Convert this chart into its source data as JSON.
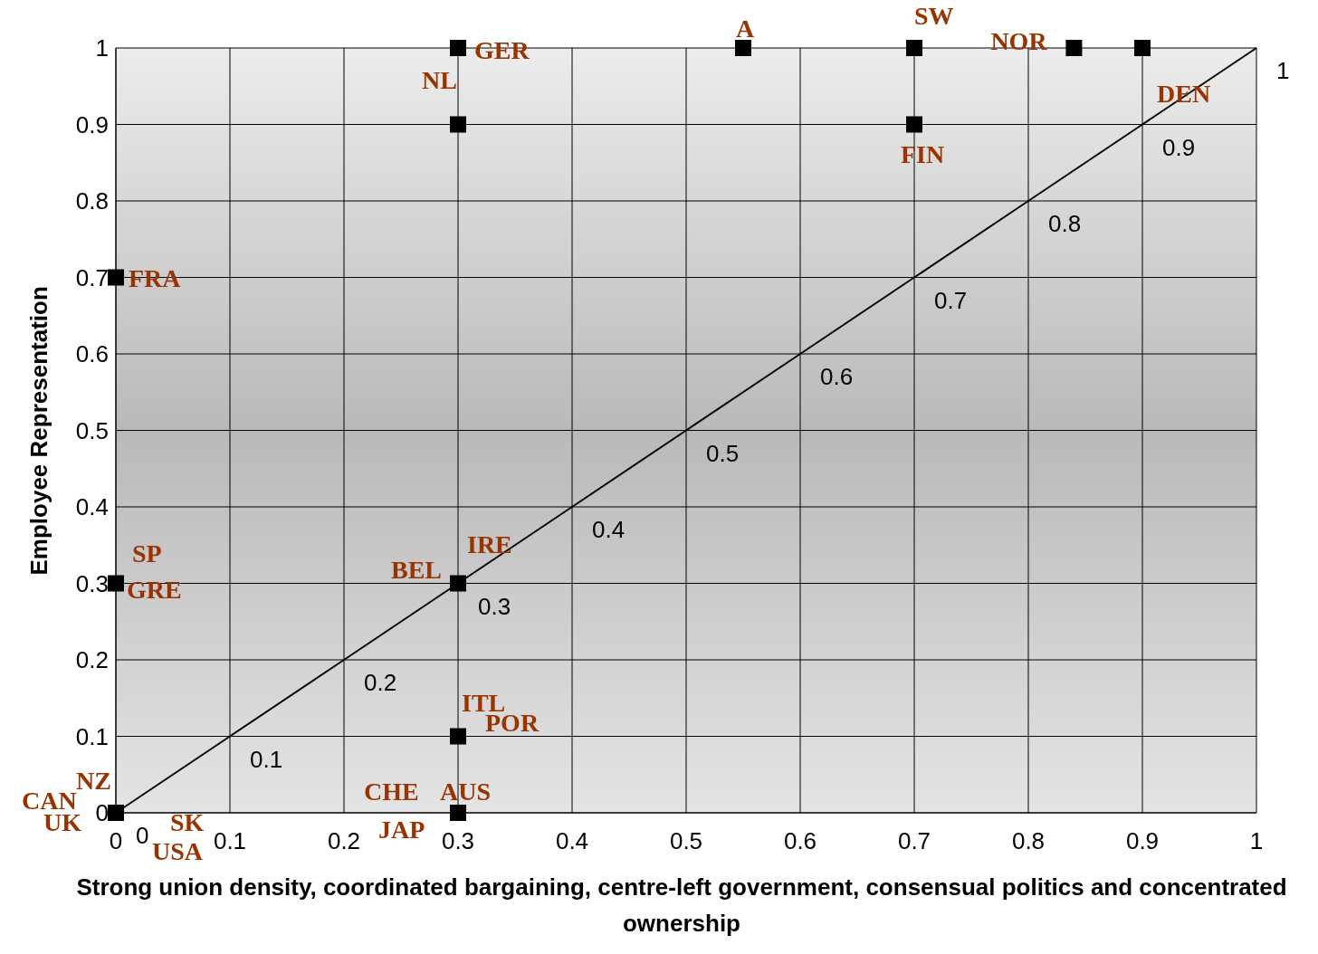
{
  "chart_data": {
    "type": "scatter",
    "xlabel": "Strong union density, coordinated bargaining, centre-left government, consensual politics and concentrated ownership",
    "ylabel": "Employee Representation",
    "xlim": [
      0,
      1
    ],
    "ylim": [
      0,
      1
    ],
    "xticks": [
      0,
      0.1,
      0.2,
      0.3,
      0.4,
      0.5,
      0.6,
      0.7,
      0.8,
      0.9,
      1
    ],
    "yticks": [
      0,
      0.1,
      0.2,
      0.3,
      0.4,
      0.5,
      0.6,
      0.7,
      0.8,
      0.9,
      1
    ],
    "grid": true,
    "series": [
      {
        "color": "#000000",
        "marker": "square",
        "x": [
          0.3,
          0.3,
          0.55,
          0.7,
          0.84,
          0.9,
          0.7,
          0,
          0,
          0.3,
          0.3,
          0.3,
          0
        ],
        "values": [
          1,
          0.9,
          1,
          1,
          1,
          1,
          0.9,
          0.7,
          0.3,
          0.3,
          0.1,
          0,
          0
        ]
      },
      {
        "type": "line",
        "color": "#000000",
        "marker": "none",
        "line_style": "solid",
        "x": [
          0,
          0.1,
          0.2,
          0.3,
          0.4,
          0.5,
          0.6,
          0.7,
          0.8,
          0.9,
          1
        ],
        "values": [
          0,
          0.1,
          0.2,
          0.3,
          0.4,
          0.5,
          0.6,
          0.7,
          0.8,
          0.9,
          1
        ],
        "value_labels": [
          "0",
          "0.1",
          "0.2",
          "0.3",
          "0.4",
          "0.5",
          "0.6",
          "0.7",
          "0.8",
          "0.9",
          "1"
        ]
      }
    ],
    "annotations": [
      {
        "text": "GER",
        "x": 0.3,
        "y": 1
      },
      {
        "text": "NL",
        "x": 0.3,
        "y": 0.9
      },
      {
        "text": "A",
        "x": 0.55,
        "y": 1
      },
      {
        "text": "SW",
        "x": 0.7,
        "y": 1
      },
      {
        "text": "NOR",
        "x": 0.84,
        "y": 1
      },
      {
        "text": "DEN",
        "x": 0.9,
        "y": 1
      },
      {
        "text": "FIN",
        "x": 0.7,
        "y": 0.9
      },
      {
        "text": "FRA",
        "x": 0,
        "y": 0.7
      },
      {
        "text": "SP",
        "x": 0,
        "y": 0.3
      },
      {
        "text": "GRE",
        "x": 0,
        "y": 0.3
      },
      {
        "text": "IRE",
        "x": 0.3,
        "y": 0.3
      },
      {
        "text": "BEL",
        "x": 0.3,
        "y": 0.3
      },
      {
        "text": "ITL",
        "x": 0.3,
        "y": 0.1
      },
      {
        "text": "POR",
        "x": 0.3,
        "y": 0.1
      },
      {
        "text": "AUS",
        "x": 0.3,
        "y": 0
      },
      {
        "text": "JAP",
        "x": 0.3,
        "y": 0
      },
      {
        "text": "CHE",
        "x": 0.3,
        "y": 0
      },
      {
        "text": "CAN",
        "x": 0,
        "y": 0
      },
      {
        "text": "NZ",
        "x": 0,
        "y": 0
      },
      {
        "text": "UK",
        "x": 0,
        "y": 0
      },
      {
        "text": "SK",
        "x": 0,
        "y": 0
      },
      {
        "text": "USA",
        "x": 0,
        "y": 0
      }
    ]
  }
}
